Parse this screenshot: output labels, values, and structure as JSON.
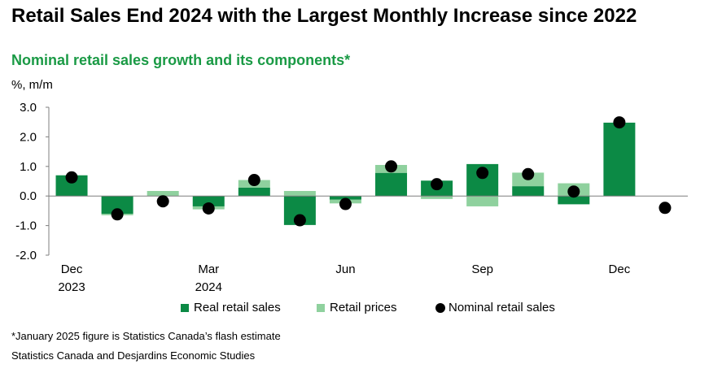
{
  "header": {
    "title": "Retail Sales End 2024 with the Largest Monthly Increase since 2022",
    "subtitle": "Nominal retail sales growth and its components*",
    "unit": "%, m/m"
  },
  "footer": {
    "note": "*January 2025 figure is Statistics Canada’s flash estimate",
    "source": "Statistics Canada and Desjardins Economic Studies"
  },
  "colors": {
    "real": "#0c8a45",
    "prices": "#8fd19e",
    "nominal": "#000000"
  },
  "chart_data": {
    "type": "bar",
    "stacked": true,
    "title": "Nominal retail sales growth and its components*",
    "ylabel": "%, m/m",
    "ylim": [
      -2.0,
      3.0
    ],
    "yticks": [
      "3.0",
      "2.0",
      "1.0",
      "0.0",
      "-1.0",
      "-2.0"
    ],
    "categories": [
      "Dec 2023",
      "Jan 2024",
      "Feb 2024",
      "Mar 2024",
      "Apr 2024",
      "May 2024",
      "Jun 2024",
      "Jul 2024",
      "Aug 2024",
      "Sep 2024",
      "Oct 2024",
      "Nov 2024",
      "Dec 2024",
      "Jan 2025"
    ],
    "x_tick_labels": [
      {
        "index": 0,
        "line1": "Dec",
        "line2": "2023"
      },
      {
        "index": 3,
        "line1": "Mar",
        "line2": "2024"
      },
      {
        "index": 6,
        "line1": "Jun",
        "line2": ""
      },
      {
        "index": 9,
        "line1": "Sep",
        "line2": ""
      },
      {
        "index": 12,
        "line1": "Dec",
        "line2": ""
      }
    ],
    "series": [
      {
        "name": "Real retail sales",
        "type": "bar",
        "values": [
          0.7,
          -0.6,
          0.0,
          -0.35,
          0.28,
          -0.98,
          -0.12,
          0.78,
          0.52,
          1.08,
          0.33,
          -0.28,
          2.48,
          null
        ]
      },
      {
        "name": "Retail prices",
        "type": "bar",
        "values": [
          0.0,
          -0.05,
          0.17,
          -0.1,
          0.26,
          0.17,
          -0.13,
          0.27,
          -0.1,
          -0.35,
          0.46,
          0.43,
          0.0,
          null
        ]
      },
      {
        "name": "Nominal retail sales",
        "type": "scatter",
        "values": [
          0.63,
          -0.62,
          -0.18,
          -0.42,
          0.54,
          -0.82,
          -0.27,
          1.0,
          0.4,
          0.78,
          0.74,
          0.15,
          2.49,
          -0.4
        ]
      }
    ]
  }
}
